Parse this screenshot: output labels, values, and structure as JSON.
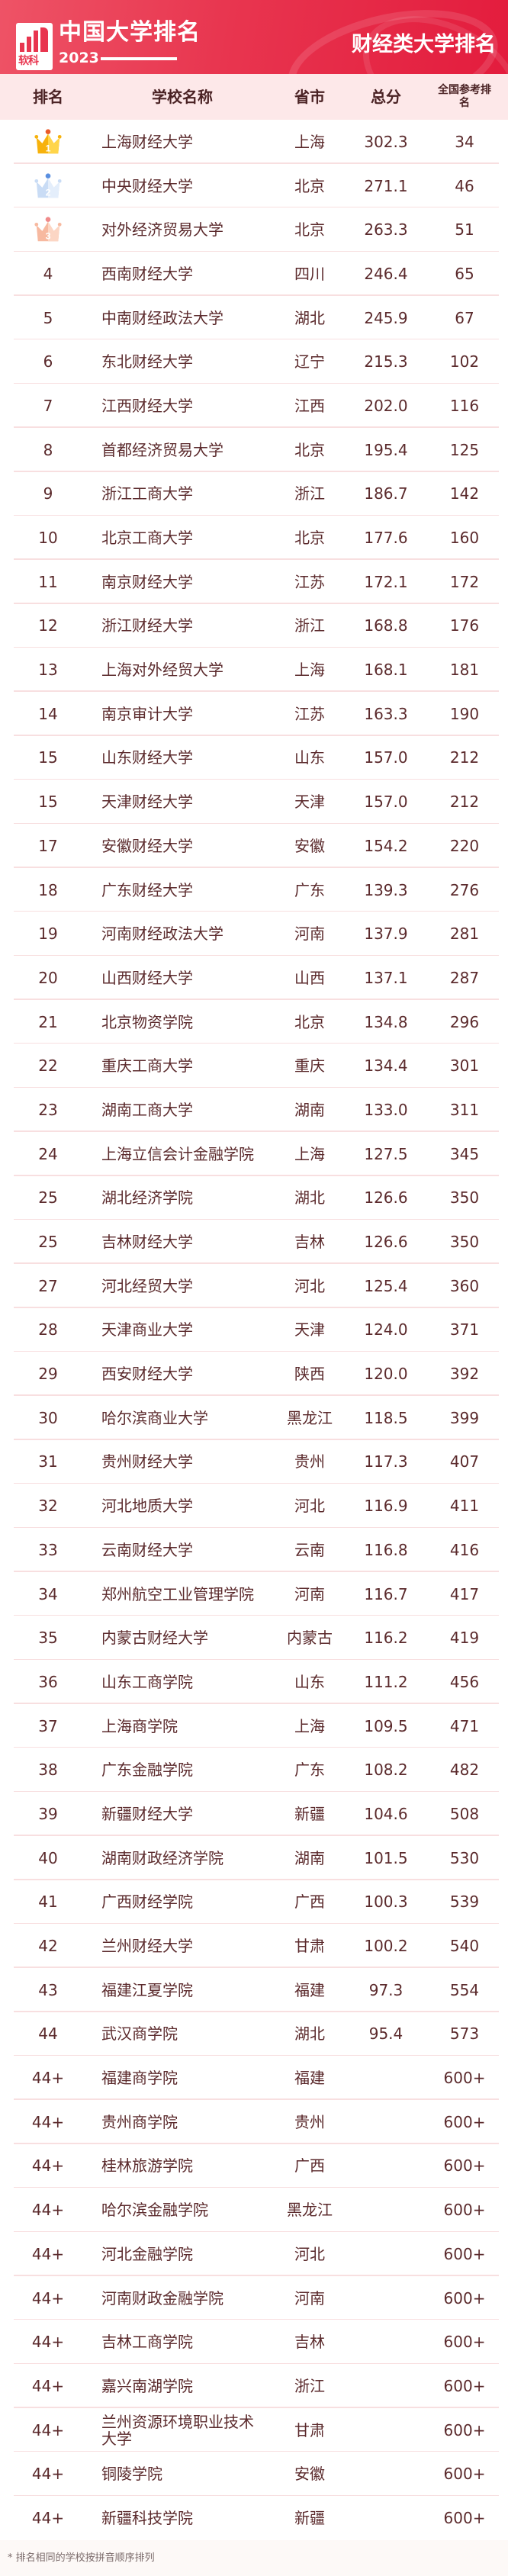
{
  "header": {
    "brand_logo_text": "软科",
    "title": "中国大学排名",
    "year": "2023",
    "subtitle": "财经类大学排名",
    "colors": {
      "banner": "#e8354f",
      "header_row_bg": "#fde8e9",
      "text": "#5b2a2c"
    }
  },
  "table": {
    "columns": [
      "排名",
      "学校名称",
      "省市",
      "总分",
      "全国参考排名"
    ],
    "rows": [
      {
        "rank": "1",
        "badge": "gold-crown-icon",
        "name": "上海财经大学",
        "province": "上海",
        "score": "302.3",
        "national": "34"
      },
      {
        "rank": "2",
        "badge": "silver-crown-icon",
        "name": "中央财经大学",
        "province": "北京",
        "score": "271.1",
        "national": "46"
      },
      {
        "rank": "3",
        "badge": "bronze-crown-icon",
        "name": "对外经济贸易大学",
        "province": "北京",
        "score": "263.3",
        "national": "51"
      },
      {
        "rank": "4",
        "name": "西南财经大学",
        "province": "四川",
        "score": "246.4",
        "national": "65"
      },
      {
        "rank": "5",
        "name": "中南财经政法大学",
        "province": "湖北",
        "score": "245.9",
        "national": "67"
      },
      {
        "rank": "6",
        "name": "东北财经大学",
        "province": "辽宁",
        "score": "215.3",
        "national": "102"
      },
      {
        "rank": "7",
        "name": "江西财经大学",
        "province": "江西",
        "score": "202.0",
        "national": "116"
      },
      {
        "rank": "8",
        "name": "首都经济贸易大学",
        "province": "北京",
        "score": "195.4",
        "national": "125"
      },
      {
        "rank": "9",
        "name": "浙江工商大学",
        "province": "浙江",
        "score": "186.7",
        "national": "142"
      },
      {
        "rank": "10",
        "name": "北京工商大学",
        "province": "北京",
        "score": "177.6",
        "national": "160"
      },
      {
        "rank": "11",
        "name": "南京财经大学",
        "province": "江苏",
        "score": "172.1",
        "national": "172"
      },
      {
        "rank": "12",
        "name": "浙江财经大学",
        "province": "浙江",
        "score": "168.8",
        "national": "176"
      },
      {
        "rank": "13",
        "name": "上海对外经贸大学",
        "province": "上海",
        "score": "168.1",
        "national": "181"
      },
      {
        "rank": "14",
        "name": "南京审计大学",
        "province": "江苏",
        "score": "163.3",
        "national": "190"
      },
      {
        "rank": "15",
        "name": "山东财经大学",
        "province": "山东",
        "score": "157.0",
        "national": "212"
      },
      {
        "rank": "15",
        "name": "天津财经大学",
        "province": "天津",
        "score": "157.0",
        "national": "212"
      },
      {
        "rank": "17",
        "name": "安徽财经大学",
        "province": "安徽",
        "score": "154.2",
        "national": "220"
      },
      {
        "rank": "18",
        "name": "广东财经大学",
        "province": "广东",
        "score": "139.3",
        "national": "276"
      },
      {
        "rank": "19",
        "name": "河南财经政法大学",
        "province": "河南",
        "score": "137.9",
        "national": "281"
      },
      {
        "rank": "20",
        "name": "山西财经大学",
        "province": "山西",
        "score": "137.1",
        "national": "287"
      },
      {
        "rank": "21",
        "name": "北京物资学院",
        "province": "北京",
        "score": "134.8",
        "national": "296"
      },
      {
        "rank": "22",
        "name": "重庆工商大学",
        "province": "重庆",
        "score": "134.4",
        "national": "301"
      },
      {
        "rank": "23",
        "name": "湖南工商大学",
        "province": "湖南",
        "score": "133.0",
        "national": "311"
      },
      {
        "rank": "24",
        "name": "上海立信会计金融学院",
        "province": "上海",
        "score": "127.5",
        "national": "345"
      },
      {
        "rank": "25",
        "name": "湖北经济学院",
        "province": "湖北",
        "score": "126.6",
        "national": "350"
      },
      {
        "rank": "25",
        "name": "吉林财经大学",
        "province": "吉林",
        "score": "126.6",
        "national": "350"
      },
      {
        "rank": "27",
        "name": "河北经贸大学",
        "province": "河北",
        "score": "125.4",
        "national": "360"
      },
      {
        "rank": "28",
        "name": "天津商业大学",
        "province": "天津",
        "score": "124.0",
        "national": "371"
      },
      {
        "rank": "29",
        "name": "西安财经大学",
        "province": "陕西",
        "score": "120.0",
        "national": "392"
      },
      {
        "rank": "30",
        "name": "哈尔滨商业大学",
        "province": "黑龙江",
        "score": "118.5",
        "national": "399"
      },
      {
        "rank": "31",
        "name": "贵州财经大学",
        "province": "贵州",
        "score": "117.3",
        "national": "407"
      },
      {
        "rank": "32",
        "name": "河北地质大学",
        "province": "河北",
        "score": "116.9",
        "national": "411"
      },
      {
        "rank": "33",
        "name": "云南财经大学",
        "province": "云南",
        "score": "116.8",
        "national": "416"
      },
      {
        "rank": "34",
        "name": "郑州航空工业管理学院",
        "province": "河南",
        "score": "116.7",
        "national": "417"
      },
      {
        "rank": "35",
        "name": "内蒙古财经大学",
        "province": "内蒙古",
        "score": "116.2",
        "national": "419"
      },
      {
        "rank": "36",
        "name": "山东工商学院",
        "province": "山东",
        "score": "111.2",
        "national": "456"
      },
      {
        "rank": "37",
        "name": "上海商学院",
        "province": "上海",
        "score": "109.5",
        "national": "471"
      },
      {
        "rank": "38",
        "name": "广东金融学院",
        "province": "广东",
        "score": "108.2",
        "national": "482"
      },
      {
        "rank": "39",
        "name": "新疆财经大学",
        "province": "新疆",
        "score": "104.6",
        "national": "508"
      },
      {
        "rank": "40",
        "name": "湖南财政经济学院",
        "province": "湖南",
        "score": "101.5",
        "national": "530"
      },
      {
        "rank": "41",
        "name": "广西财经学院",
        "province": "广西",
        "score": "100.3",
        "national": "539"
      },
      {
        "rank": "42",
        "name": "兰州财经大学",
        "province": "甘肃",
        "score": "100.2",
        "national": "540"
      },
      {
        "rank": "43",
        "name": "福建江夏学院",
        "province": "福建",
        "score": "97.3",
        "national": "554"
      },
      {
        "rank": "44",
        "name": "武汉商学院",
        "province": "湖北",
        "score": "95.4",
        "national": "573"
      },
      {
        "rank": "44+",
        "name": "福建商学院",
        "province": "福建",
        "score": "",
        "national": "600+"
      },
      {
        "rank": "44+",
        "name": "贵州商学院",
        "province": "贵州",
        "score": "",
        "national": "600+"
      },
      {
        "rank": "44+",
        "name": "桂林旅游学院",
        "province": "广西",
        "score": "",
        "national": "600+"
      },
      {
        "rank": "44+",
        "name": "哈尔滨金融学院",
        "province": "黑龙江",
        "score": "",
        "national": "600+"
      },
      {
        "rank": "44+",
        "name": "河北金融学院",
        "province": "河北",
        "score": "",
        "national": "600+"
      },
      {
        "rank": "44+",
        "name": "河南财政金融学院",
        "province": "河南",
        "score": "",
        "national": "600+"
      },
      {
        "rank": "44+",
        "name": "吉林工商学院",
        "province": "吉林",
        "score": "",
        "national": "600+"
      },
      {
        "rank": "44+",
        "name": "嘉兴南湖学院",
        "province": "浙江",
        "score": "",
        "national": "600+"
      },
      {
        "rank": "44+",
        "name": "兰州资源环境职业技术大学",
        "province": "甘肃",
        "score": "",
        "national": "600+"
      },
      {
        "rank": "44+",
        "name": "铜陵学院",
        "province": "安徽",
        "score": "",
        "national": "600+"
      },
      {
        "rank": "44+",
        "name": "新疆科技学院",
        "province": "新疆",
        "score": "",
        "national": "600+"
      }
    ]
  },
  "footnote": "* 排名相同的学校按拼音顺序排列"
}
